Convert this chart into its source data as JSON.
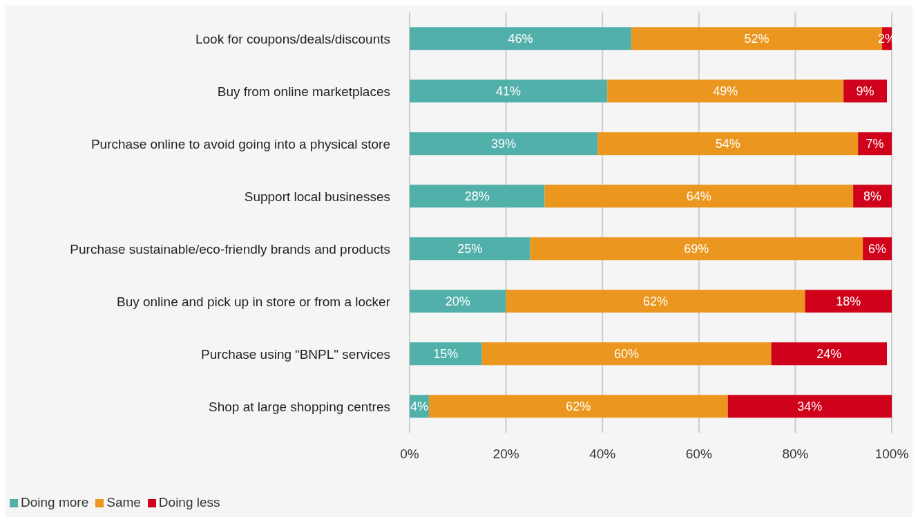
{
  "chart_data": {
    "type": "bar",
    "orientation": "horizontal",
    "stacked": true,
    "categories": [
      "Look for coupons/deals/discounts",
      "Buy from online marketplaces",
      "Purchase online to avoid going into a physical store",
      "Support local businesses",
      "Purchase sustainable/eco-friendly brands and products",
      "Buy online and pick up in store or from a locker",
      "Purchase using “BNPL\" services",
      "Shop at large shopping centres"
    ],
    "series": [
      {
        "name": "Doing more",
        "color": "#52b0ab",
        "values": [
          46,
          41,
          39,
          28,
          25,
          20,
          15,
          4
        ],
        "value_labels": [
          "46%",
          "41%",
          "39%",
          "28%",
          "25%",
          "20%",
          "15%",
          "4%"
        ]
      },
      {
        "name": "Same",
        "color": "#eb961e",
        "values": [
          52,
          49,
          54,
          64,
          69,
          62,
          60,
          62
        ],
        "value_labels": [
          "52%",
          "49%",
          "54%",
          "64%",
          "69%",
          "62%",
          "60%",
          "62%"
        ]
      },
      {
        "name": "Doing less",
        "color": "#d0021b",
        "values": [
          2,
          9,
          7,
          8,
          6,
          18,
          24,
          34
        ],
        "value_labels": [
          "2%",
          "9%",
          "7%",
          "8%",
          "6%",
          "18%",
          "24%",
          "34%"
        ]
      }
    ],
    "xlim": [
      0,
      100
    ],
    "xticks": [
      {
        "value": 0,
        "label": "0%"
      },
      {
        "value": 20,
        "label": "20%"
      },
      {
        "value": 40,
        "label": "40%"
      },
      {
        "value": 60,
        "label": "60%"
      },
      {
        "value": 80,
        "label": "80%"
      },
      {
        "value": 100,
        "label": "100%"
      }
    ],
    "grid": "x",
    "legend": "bottom left"
  }
}
